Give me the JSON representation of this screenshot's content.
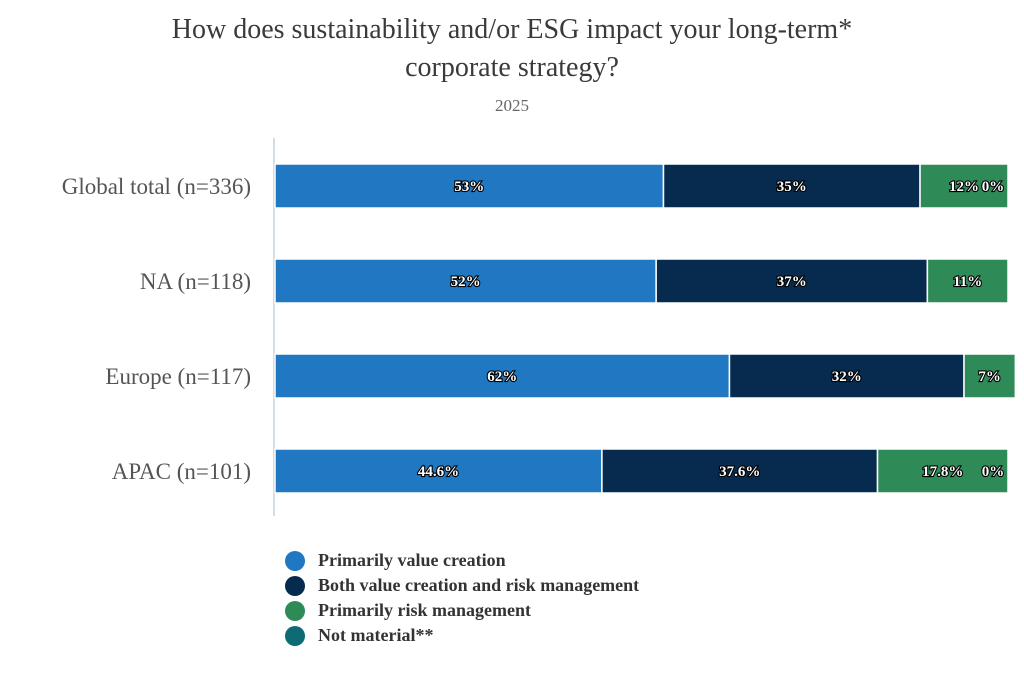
{
  "chart_data": {
    "type": "bar",
    "orientation": "horizontal",
    "stacked": true,
    "title_lines": [
      "How does sustainability and/or ESG impact your long-term*",
      "corporate strategy?"
    ],
    "subtitle": "2025",
    "categories": [
      "Global total (n=336)",
      "NA (n=118)",
      "Europe (n=117)",
      "APAC (n=101)"
    ],
    "xlim": [
      0,
      100
    ],
    "series": [
      {
        "name": "Primarily value creation",
        "color": "#1f78c1",
        "values": [
          53,
          52,
          62,
          44.6
        ],
        "labels": [
          "53%",
          "52%",
          "62%",
          "44.6%"
        ]
      },
      {
        "name": "Both value creation and risk management",
        "color": "#062b4f",
        "values": [
          35,
          37,
          32,
          37.6
        ],
        "labels": [
          "35%",
          "37%",
          "32%",
          "37.6%"
        ]
      },
      {
        "name": "Primarily risk management",
        "color": "#2e8b57",
        "values": [
          12,
          11,
          7,
          17.8
        ],
        "labels": [
          "12%",
          "11%",
          "7%",
          "17.8%"
        ]
      },
      {
        "name": "Not material**",
        "color": "#0f6b73",
        "values": [
          0,
          0,
          0,
          0
        ],
        "labels": [
          "0%",
          "",
          "",
          "0%"
        ]
      }
    ],
    "legend_position": "bottom-left"
  }
}
